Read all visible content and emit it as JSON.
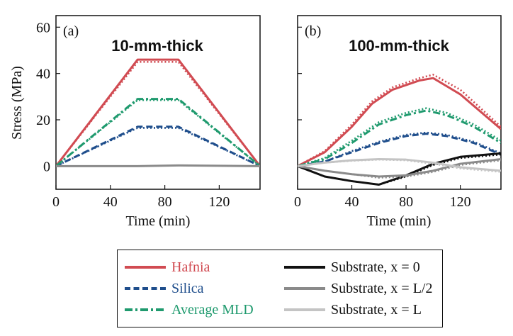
{
  "chart_data": [
    {
      "type": "line",
      "panel_label": "(a)",
      "title": "10-mm-thick",
      "xlabel": "Time (min)",
      "ylabel": "Stress (MPa)",
      "xlim": [
        0,
        150
      ],
      "ylim": [
        -10,
        65
      ],
      "xticks": [
        0,
        40,
        80,
        120
      ],
      "yticks": [
        0,
        20,
        40,
        60
      ],
      "xtick_labels": [
        "0",
        "40",
        "80",
        "120"
      ],
      "ytick_labels": [
        "0",
        "20",
        "40",
        "60"
      ],
      "series": [
        {
          "name": "Hafnia",
          "color": "#d14b52",
          "style": "solid",
          "x": [
            0,
            60,
            90,
            150
          ],
          "y": [
            0,
            46,
            46,
            0
          ]
        },
        {
          "name": "Hafnia (dotted)",
          "color": "#d14b52",
          "style": "dotted",
          "x": [
            0,
            60,
            90,
            150
          ],
          "y": [
            0,
            45,
            45,
            0
          ]
        },
        {
          "name": "Silica",
          "color": "#1f4e8c",
          "style": "dashed",
          "x": [
            0,
            60,
            90,
            150
          ],
          "y": [
            0,
            17,
            17,
            0
          ]
        },
        {
          "name": "Silica (dotted)",
          "color": "#1f4e8c",
          "style": "dotted",
          "x": [
            0,
            60,
            90,
            150
          ],
          "y": [
            0,
            16.5,
            16.5,
            0
          ]
        },
        {
          "name": "Average MLD",
          "color": "#1f9a6e",
          "style": "dashdot",
          "x": [
            0,
            60,
            90,
            150
          ],
          "y": [
            0,
            29,
            29,
            0
          ]
        },
        {
          "name": "Average MLD (dotted)",
          "color": "#1f9a6e",
          "style": "dotted",
          "x": [
            0,
            60,
            90,
            150
          ],
          "y": [
            0,
            28.5,
            28.5,
            0
          ]
        },
        {
          "name": "Substrate, x = L/2",
          "color": "#8a8a8a",
          "style": "solid",
          "x": [
            0,
            60,
            90,
            150
          ],
          "y": [
            0,
            0,
            0.3,
            0
          ]
        }
      ]
    },
    {
      "type": "line",
      "panel_label": "(b)",
      "title": "100-mm-thick",
      "xlabel": "Time (min)",
      "ylabel": "",
      "xlim": [
        0,
        150
      ],
      "ylim": [
        -10,
        65
      ],
      "xticks": [
        0,
        40,
        80,
        120
      ],
      "yticks": [
        0,
        20,
        40,
        60
      ],
      "xtick_labels": [
        "0",
        "40",
        "80",
        "120"
      ],
      "series": [
        {
          "name": "Hafnia",
          "color": "#d14b52",
          "style": "solid",
          "x": [
            0,
            20,
            40,
            55,
            70,
            90,
            100,
            120,
            150
          ],
          "y": [
            0,
            6,
            17,
            27,
            33,
            37,
            38,
            31,
            16
          ]
        },
        {
          "name": "Hafnia (dotted)",
          "color": "#d14b52",
          "style": "dotted",
          "x": [
            0,
            20,
            40,
            55,
            70,
            90,
            100,
            120,
            150
          ],
          "y": [
            0,
            6.5,
            18,
            28,
            34,
            38,
            39.5,
            33,
            17
          ]
        },
        {
          "name": "Silica",
          "color": "#1f4e8c",
          "style": "dashed",
          "x": [
            0,
            20,
            40,
            60,
            80,
            95,
            110,
            130,
            150
          ],
          "y": [
            0,
            2,
            6,
            10,
            13,
            14,
            13,
            10,
            5
          ]
        },
        {
          "name": "Silica (dotted)",
          "color": "#1f4e8c",
          "style": "dotted",
          "x": [
            0,
            20,
            40,
            60,
            80,
            95,
            110,
            130,
            150
          ],
          "y": [
            0,
            2,
            6.5,
            10.5,
            13.5,
            14.5,
            13.5,
            10.5,
            5.5
          ]
        },
        {
          "name": "Average MLD",
          "color": "#1f9a6e",
          "style": "dashdot",
          "x": [
            0,
            20,
            40,
            60,
            80,
            95,
            110,
            130,
            150
          ],
          "y": [
            0,
            3,
            10,
            18,
            22,
            24,
            22,
            17,
            10
          ]
        },
        {
          "name": "Average MLD (dotted)",
          "color": "#1f9a6e",
          "style": "dotted",
          "x": [
            0,
            20,
            40,
            60,
            80,
            95,
            110,
            130,
            150
          ],
          "y": [
            0,
            3.5,
            11,
            19,
            23,
            25,
            23,
            18,
            11
          ]
        },
        {
          "name": "Substrate, x = 0",
          "color": "#111111",
          "style": "solid",
          "x": [
            0,
            20,
            40,
            60,
            80,
            100,
            120,
            150
          ],
          "y": [
            0,
            -4.5,
            -6.5,
            -8,
            -4,
            1,
            4,
            5.5
          ]
        },
        {
          "name": "Substrate, x = 0 (dotted)",
          "color": "#111111",
          "style": "dotted",
          "x": [
            0,
            20,
            40,
            60,
            80,
            100,
            120,
            150
          ],
          "y": [
            0,
            -4.5,
            -6.5,
            -8,
            -4.5,
            0.5,
            3.5,
            5
          ]
        },
        {
          "name": "Substrate, x = L/2",
          "color": "#8a8a8a",
          "style": "solid",
          "x": [
            0,
            20,
            40,
            60,
            80,
            100,
            120,
            150
          ],
          "y": [
            0,
            -2,
            -3.5,
            -4.5,
            -4,
            -2,
            1,
            3
          ]
        },
        {
          "name": "Substrate, x = L/2 (dotted)",
          "color": "#8a8a8a",
          "style": "dotted",
          "x": [
            0,
            20,
            40,
            60,
            80,
            100,
            120,
            150
          ],
          "y": [
            0,
            -2,
            -3.5,
            -5,
            -4.5,
            -2.5,
            0.5,
            2.5
          ]
        },
        {
          "name": "Substrate, x = L",
          "color": "#c4c4c4",
          "style": "solid",
          "x": [
            0,
            20,
            40,
            60,
            80,
            100,
            120,
            150
          ],
          "y": [
            0,
            1.5,
            2.5,
            3,
            2.8,
            1.5,
            -0.5,
            -2
          ]
        },
        {
          "name": "Substrate, x = L (dotted)",
          "color": "#c4c4c4",
          "style": "dotted",
          "x": [
            0,
            20,
            40,
            60,
            80,
            100,
            120,
            150
          ],
          "y": [
            0,
            1.5,
            2.3,
            2.8,
            2.5,
            1,
            -1,
            -2.5
          ]
        }
      ]
    }
  ],
  "legend": {
    "items": [
      {
        "label": "Hafnia",
        "color": "#d14b52",
        "style": "solid",
        "label_color": "#d14b52"
      },
      {
        "label": "Silica",
        "color": "#1f4e8c",
        "style": "dashed",
        "label_color": "#1f4e8c"
      },
      {
        "label": "Average MLD",
        "color": "#1f9a6e",
        "style": "dashdot",
        "label_color": "#1f9a6e"
      },
      {
        "label": "Substrate, x = 0",
        "color": "#111111",
        "style": "solid",
        "label_color": "#111111"
      },
      {
        "label": "Substrate, x = L/2",
        "color": "#8a8a8a",
        "style": "solid",
        "label_color": "#111111"
      },
      {
        "label": "Substrate, x = L",
        "color": "#c4c4c4",
        "style": "solid",
        "label_color": "#111111"
      }
    ]
  }
}
